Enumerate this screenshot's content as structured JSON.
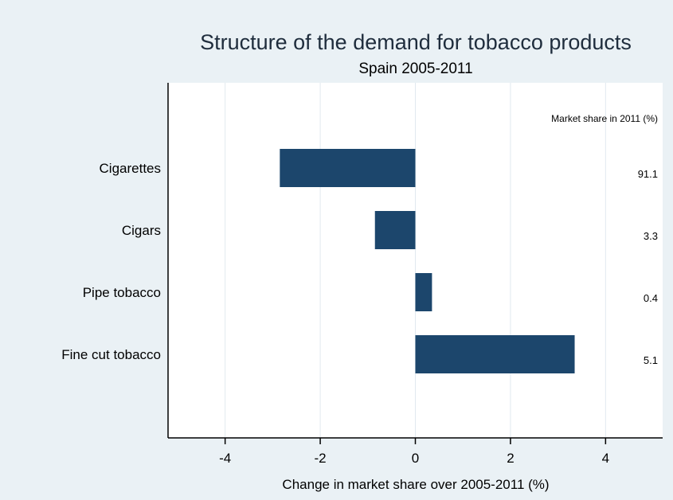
{
  "chart_data": {
    "type": "bar",
    "orientation": "horizontal",
    "title": "Structure of the demand for tobacco products",
    "subtitle": "Spain 2005-2011",
    "xlabel": "Change in market share over 2005-2011 (%)",
    "ylabel": "",
    "xlim": [
      -5.2,
      5.2
    ],
    "x_ticks": [
      -4,
      -2,
      0,
      2,
      4
    ],
    "x_tick_labels": [
      "-4",
      "-2",
      "0",
      "2",
      "4"
    ],
    "grid": true,
    "categories": [
      "Cigarettes",
      "Cigars",
      "Pipe tobacco",
      "Fine cut tobacco"
    ],
    "values": [
      -2.85,
      -0.85,
      0.35,
      3.35
    ],
    "annotation_header": "Market share in 2011 (%)",
    "annotations": [
      "91.1",
      "3.3",
      "0.4",
      "5.1"
    ],
    "colors": {
      "bar": "#1c466c",
      "grid": "#e1e9ef",
      "page_background": "#eaf1f5",
      "plot_background": "#ffffff",
      "title": "#1f2d3d"
    }
  }
}
